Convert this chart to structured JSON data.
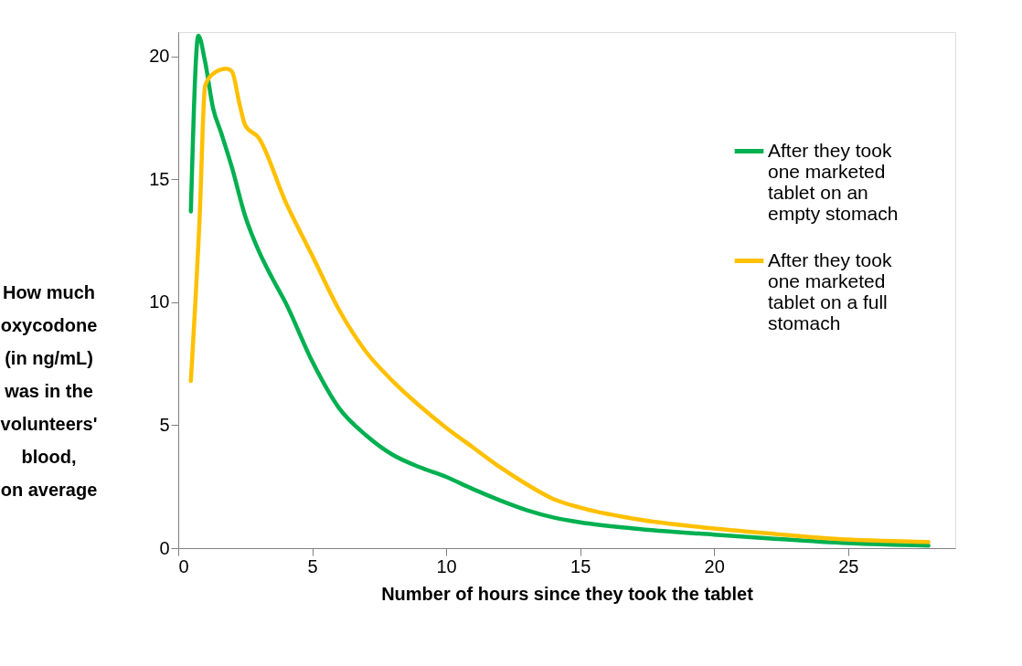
{
  "chart_data": {
    "type": "line",
    "xlabel": "Number of hours since they took the tablet",
    "ylabel": "How much\noxycodone\n(in ng/mL)\nwas in the\nvolunteers'\nblood,\non average",
    "xlim": [
      0,
      29
    ],
    "xticks": [
      0,
      5,
      10,
      15,
      20,
      25
    ],
    "ylim": [
      0,
      21
    ],
    "yticks": [
      0,
      5,
      10,
      15,
      20
    ],
    "grid": false,
    "legend": "top right",
    "line_style": "solid",
    "marker": "none",
    "series": [
      {
        "name": "After they took\none marketed\ntablet on an\nempty stomach",
        "color": "#00b050",
        "x": [
          0.47,
          0.75,
          1.0,
          1.3,
          1.6,
          2.0,
          2.5,
          3.0,
          3.5,
          4.0,
          5.0,
          6.0,
          7.0,
          8.0,
          9.0,
          10.0,
          11.0,
          12.0,
          13.0,
          14.0,
          15.0,
          17.0,
          20.0,
          22.0,
          25.0,
          28.0
        ],
        "values": [
          13.7,
          20.85,
          19.8,
          17.9,
          16.9,
          15.5,
          13.5,
          12.1,
          11.0,
          10.0,
          7.6,
          5.7,
          4.6,
          3.8,
          3.3,
          2.9,
          2.4,
          1.95,
          1.55,
          1.25,
          1.05,
          0.8,
          0.55,
          0.4,
          0.2,
          0.1
        ]
      },
      {
        "name": "After they took\none marketed\ntablet on a full\nstomach",
        "color": "#ffc000",
        "x": [
          0.47,
          0.8,
          1.0,
          1.3,
          1.8,
          2.0,
          2.3,
          2.5,
          3.0,
          4.0,
          5.0,
          6.0,
          7.0,
          8.0,
          9.0,
          10.0,
          11.0,
          12.0,
          13.0,
          14.0,
          15.0,
          17.0,
          20.0,
          22.0,
          25.0,
          28.0
        ],
        "values": [
          6.8,
          13.5,
          18.8,
          19.3,
          19.5,
          19.4,
          18.0,
          17.2,
          16.7,
          14.1,
          11.9,
          9.7,
          8.0,
          6.8,
          5.8,
          4.9,
          4.1,
          3.3,
          2.6,
          2.0,
          1.65,
          1.2,
          0.8,
          0.6,
          0.35,
          0.25
        ]
      }
    ]
  }
}
